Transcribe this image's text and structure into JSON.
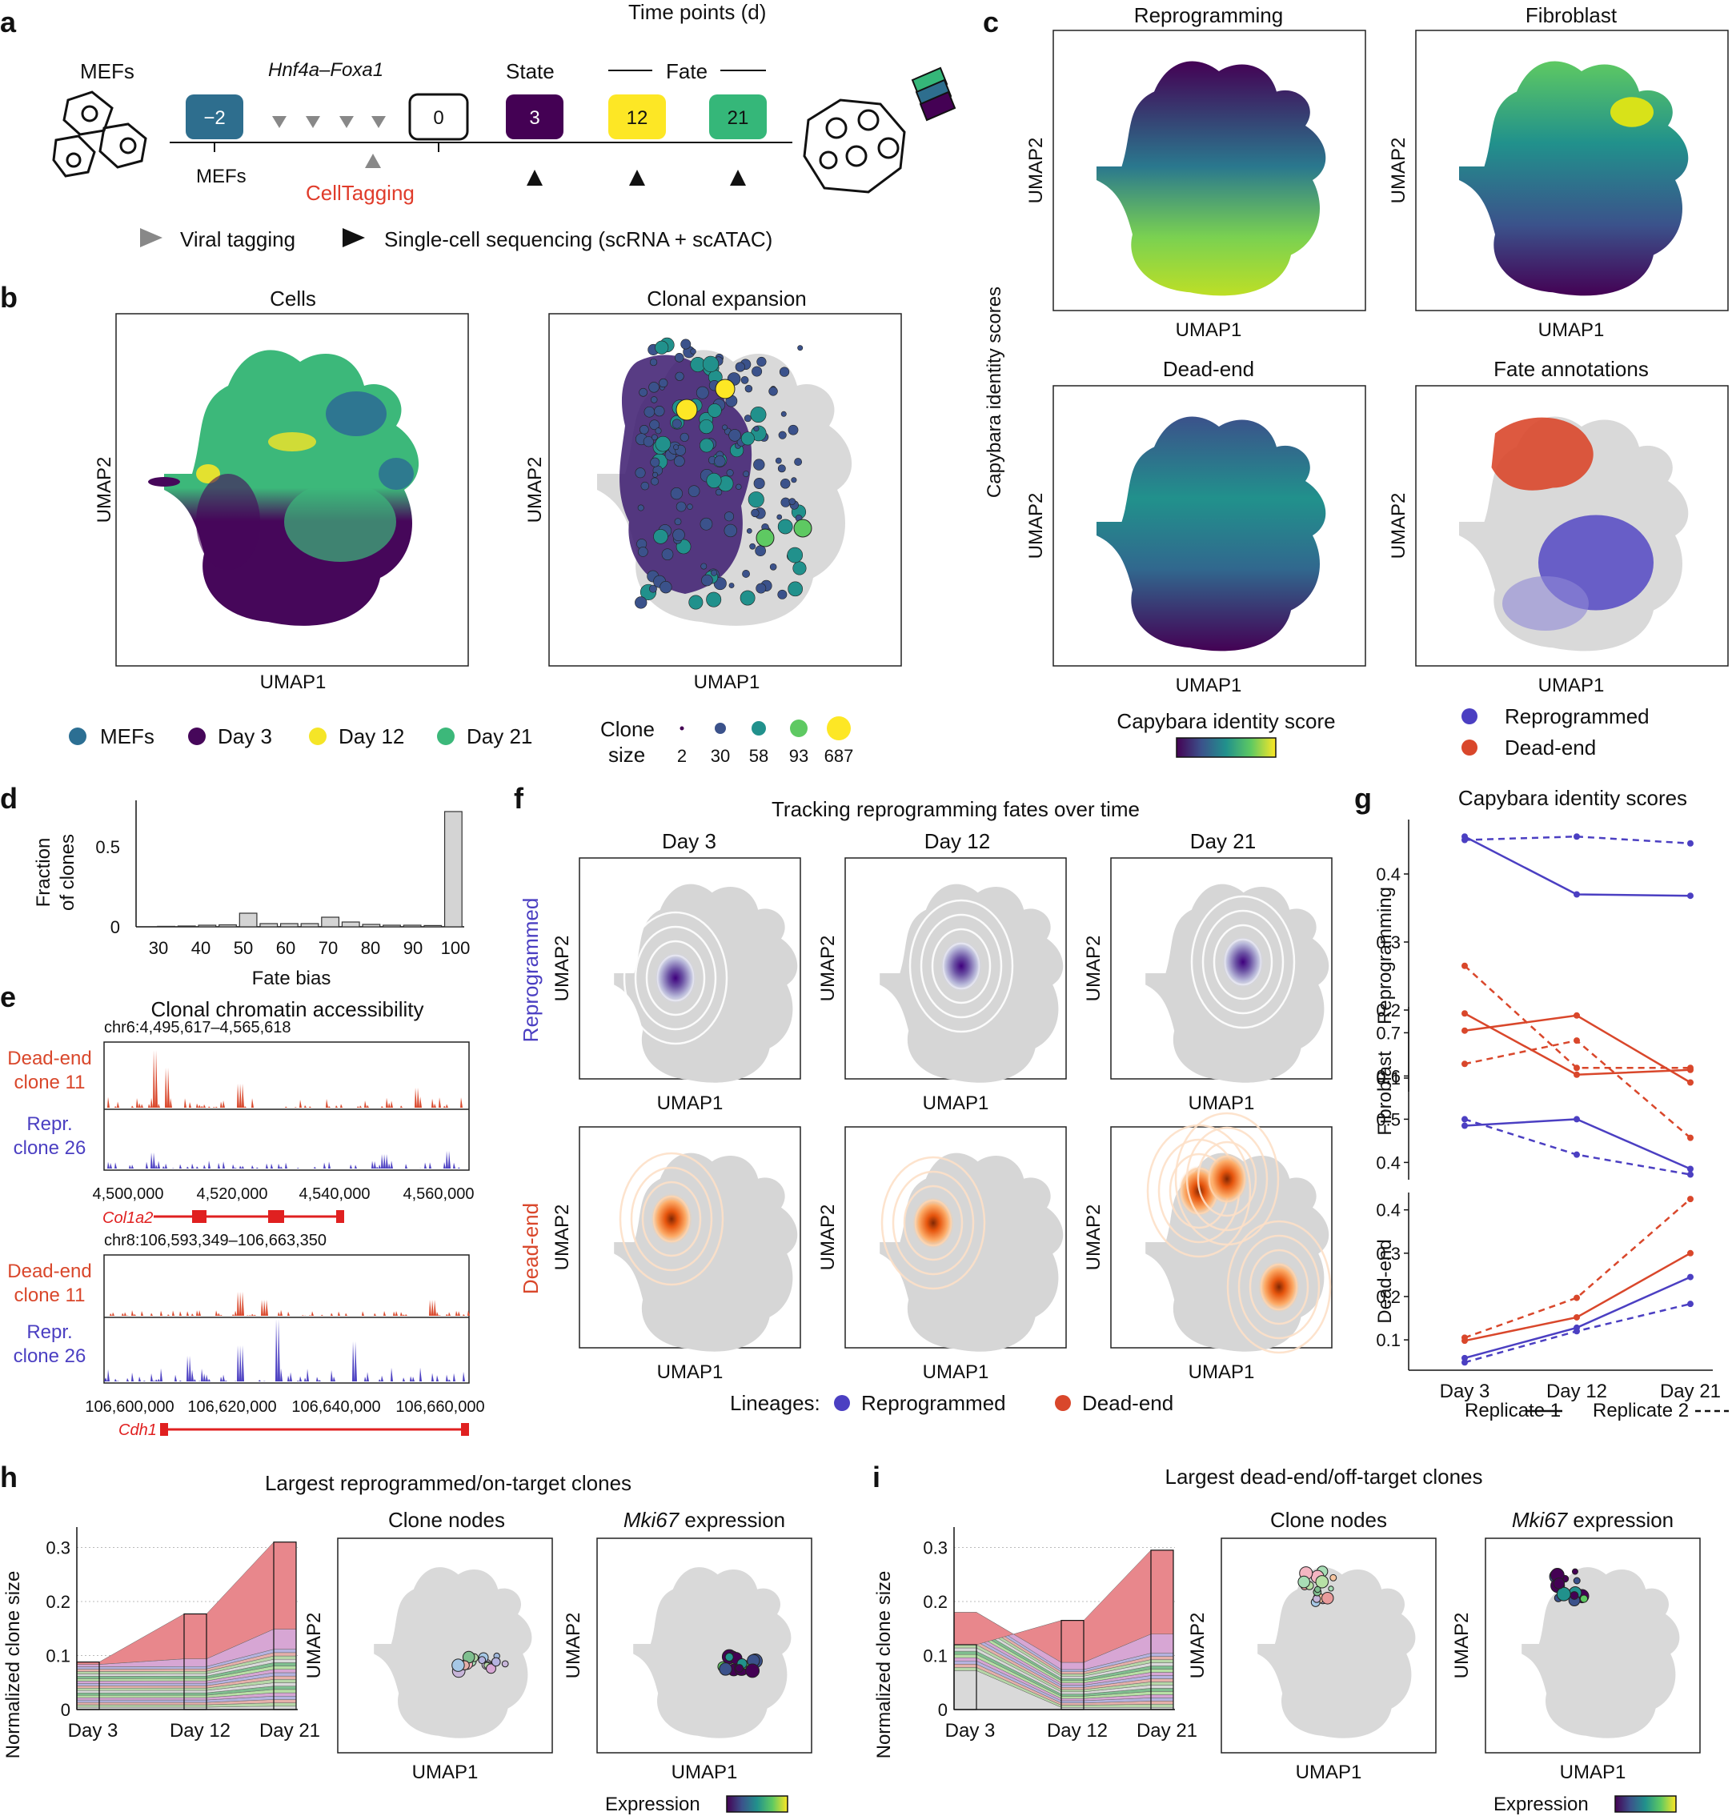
{
  "panels": {
    "a": "a",
    "b": "b",
    "c": "c",
    "d": "d",
    "e": "e",
    "f": "f",
    "g": "g",
    "h": "h",
    "i": "i"
  },
  "panel_a": {
    "timepoints_title": "Time points (d)",
    "mefs_label": "MEFs",
    "factors_label": "Hnf4a–Foxa1",
    "state_label": "State",
    "fate_label": "Fate",
    "boxes": [
      "−2",
      "0",
      "3",
      "12",
      "21"
    ],
    "box_colors": [
      "#2e6e8e",
      "#ffffff",
      "#440154",
      "#fde725",
      "#35b779"
    ],
    "mefs_below": "MEFs",
    "celltagging": "CellTagging",
    "legend_viral": "Viral tagging",
    "legend_seq": "Single-cell sequencing (scRNA + scATAC)"
  },
  "panel_b": {
    "cells_title": "Cells",
    "clonal_title": "Clonal expansion",
    "xlabel": "UMAP1",
    "ylabel": "UMAP2",
    "legend": [
      {
        "label": "MEFs",
        "color": "#2c6f93"
      },
      {
        "label": "Day 3",
        "color": "#46075a"
      },
      {
        "label": "Day 12",
        "color": "#f5e527"
      },
      {
        "label": "Day 21",
        "color": "#3cb87a"
      }
    ],
    "clone_size_label_1": "Clone",
    "clone_size_label_2": "size",
    "clone_sizes": [
      "2",
      "30",
      "58",
      "93",
      "687"
    ],
    "clone_colors": [
      "#440154",
      "#3b528b",
      "#21918c",
      "#5ec962",
      "#fde725"
    ]
  },
  "panel_c": {
    "titles": [
      "Reprogramming",
      "Fibroblast",
      "Dead-end",
      "Fate annotations"
    ],
    "side_label": "Capybara identity scores",
    "xlabel": "UMAP1",
    "ylabel": "UMAP2",
    "colorbar_label": "Capybara identity score",
    "fate_legend": [
      {
        "label": "Reprogrammed",
        "color": "#4b3fc2"
      },
      {
        "label": "Dead-end",
        "color": "#d9472b"
      }
    ]
  },
  "panel_d": {
    "ylabel_1": "Fraction",
    "ylabel_2": "of clones",
    "xlabel": "Fate bias",
    "chart_data": {
      "type": "bar",
      "categories": [
        30,
        35,
        40,
        45,
        50,
        55,
        60,
        65,
        70,
        75,
        80,
        85,
        90,
        95,
        100
      ],
      "values": [
        0.003,
        0.005,
        0.01,
        0.012,
        0.085,
        0.02,
        0.02,
        0.02,
        0.06,
        0.03,
        0.015,
        0.01,
        0.01,
        0.008,
        0.72
      ],
      "xticks": [
        "30",
        "40",
        "50",
        "60",
        "70",
        "80",
        "90",
        "100"
      ],
      "yticks": [
        "0",
        "0.5"
      ],
      "ylim": [
        0,
        0.75
      ]
    }
  },
  "panel_e": {
    "title": "Clonal chromatin accessibility",
    "locus1": "chr6:4,495,617–4,565,618",
    "locus2": "chr8:106,593,349–106,663,350",
    "track_dead_1": "Dead-end",
    "track_dead_2": "clone 11",
    "track_repr_1": "Repr.",
    "track_repr_2": "clone 26",
    "ticks1": [
      "4,500,000",
      "4,520,000",
      "4,540,000",
      "4,560,000"
    ],
    "ticks2": [
      "106,600,000",
      "106,620,000",
      "106,640,000",
      "106,660,000"
    ],
    "gene1": "Col1a2",
    "gene2": "Cdh1",
    "dead_color": "#d9472b",
    "repr_color": "#4b3fc2"
  },
  "panel_f": {
    "title": "Tracking reprogramming fates over time",
    "days": [
      "Day 3",
      "Day 12",
      "Day 21"
    ],
    "row_labels": [
      "Reprogrammed",
      "Dead-end"
    ],
    "xlabel": "UMAP1",
    "ylabel": "UMAP2",
    "legend_prefix": "Lineages:",
    "legend": [
      {
        "label": "Reprogrammed",
        "color": "#4b3fc2"
      },
      {
        "label": "Dead-end",
        "color": "#d9472b"
      }
    ]
  },
  "panel_g": {
    "title": "Capybara identity scores",
    "xlabels": [
      "Day 3",
      "Day 12",
      "Day 21"
    ],
    "rep1": "Replicate 1",
    "rep2": "Replicate 2",
    "chart_data": [
      {
        "type": "line",
        "ylabel": "Reprogramming",
        "yticks": [
          "0.4",
          "0.3",
          "0.2",
          "0.1"
        ],
        "ylim": [
          0.08,
          0.48
        ],
        "series": [
          {
            "name": "Reprogrammed rep1",
            "color": "#4b3fc2",
            "dash": false,
            "values": [
              0.455,
              0.37,
              0.368
            ]
          },
          {
            "name": "Reprogrammed rep2",
            "color": "#4b3fc2",
            "dash": true,
            "values": [
              0.45,
              0.455,
              0.445
            ]
          },
          {
            "name": "Dead-end rep1",
            "color": "#d9472b",
            "dash": false,
            "values": [
              0.195,
              0.105,
              0.112
            ]
          },
          {
            "name": "Dead-end rep2",
            "color": "#d9472b",
            "dash": true,
            "values": [
              0.265,
              0.115,
              0.115
            ]
          }
        ]
      },
      {
        "type": "line",
        "ylabel": "Fibroblast",
        "yticks": [
          "0.7",
          "0.6",
          "0.5",
          "0.4"
        ],
        "ylim": [
          0.36,
          0.76
        ],
        "series": [
          {
            "name": "Dead-end rep1",
            "color": "#d9472b",
            "dash": false,
            "values": [
              0.705,
              0.74,
              0.585
            ]
          },
          {
            "name": "Dead-end rep2",
            "color": "#d9472b",
            "dash": true,
            "values": [
              0.628,
              0.682,
              0.457
            ]
          },
          {
            "name": "Reprogrammed rep1",
            "color": "#4b3fc2",
            "dash": false,
            "values": [
              0.485,
              0.5,
              0.385
            ]
          },
          {
            "name": "Reprogrammed rep2",
            "color": "#4b3fc2",
            "dash": true,
            "values": [
              0.5,
              0.418,
              0.372
            ]
          }
        ]
      },
      {
        "type": "line",
        "ylabel": "Dead-end",
        "yticks": [
          "0.4",
          "0.3",
          "0.2",
          "0.1"
        ],
        "ylim": [
          0.03,
          0.44
        ],
        "series": [
          {
            "name": "Dead-end rep1",
            "color": "#d9472b",
            "dash": false,
            "values": [
              0.098,
              0.152,
              0.3
            ]
          },
          {
            "name": "Dead-end rep2",
            "color": "#d9472b",
            "dash": true,
            "values": [
              0.105,
              0.197,
              0.425
            ]
          },
          {
            "name": "Reprogrammed rep1",
            "color": "#4b3fc2",
            "dash": false,
            "values": [
              0.058,
              0.128,
              0.245
            ]
          },
          {
            "name": "Reprogrammed rep2",
            "color": "#4b3fc2",
            "dash": true,
            "values": [
              0.048,
              0.12,
              0.183
            ]
          }
        ]
      }
    ]
  },
  "panel_h": {
    "title": "Largest reprogrammed/on-target clones",
    "ylabel": "Normalized clone size",
    "yticks": [
      "0",
      "0.1",
      "0.2",
      "0.3"
    ],
    "xlabels": [
      "Day 3",
      "Day 12",
      "Day 21"
    ],
    "nodes_title": "Clone nodes",
    "mki_title": "Mki67",
    "mki_suffix": " expression",
    "xlabel": "UMAP1",
    "ylabel_umap": "UMAP2",
    "expr_label": "Expression",
    "chart_data": {
      "type": "area",
      "x": [
        "Day 3",
        "Day 12",
        "Day 21"
      ],
      "totals": [
        0.088,
        0.177,
        0.31
      ],
      "ylim": [
        0,
        0.32
      ]
    }
  },
  "panel_i": {
    "title": "Largest dead-end/off-target clones",
    "ylabel": "Normalized clone size",
    "yticks": [
      "0",
      "0.1",
      "0.2",
      "0.3"
    ],
    "xlabels": [
      "Day 3",
      "Day 12",
      "Day 21"
    ],
    "nodes_title": "Clone nodes",
    "mki_title": "Mki67",
    "mki_suffix": " expression",
    "xlabel": "UMAP1",
    "ylabel_umap": "UMAP2",
    "expr_label": "Expression",
    "chart_data": {
      "type": "area",
      "x": [
        "Day 3",
        "Day 12",
        "Day 21"
      ],
      "totals": [
        0.12,
        0.165,
        0.295
      ],
      "ylim": [
        0,
        0.32
      ]
    }
  }
}
